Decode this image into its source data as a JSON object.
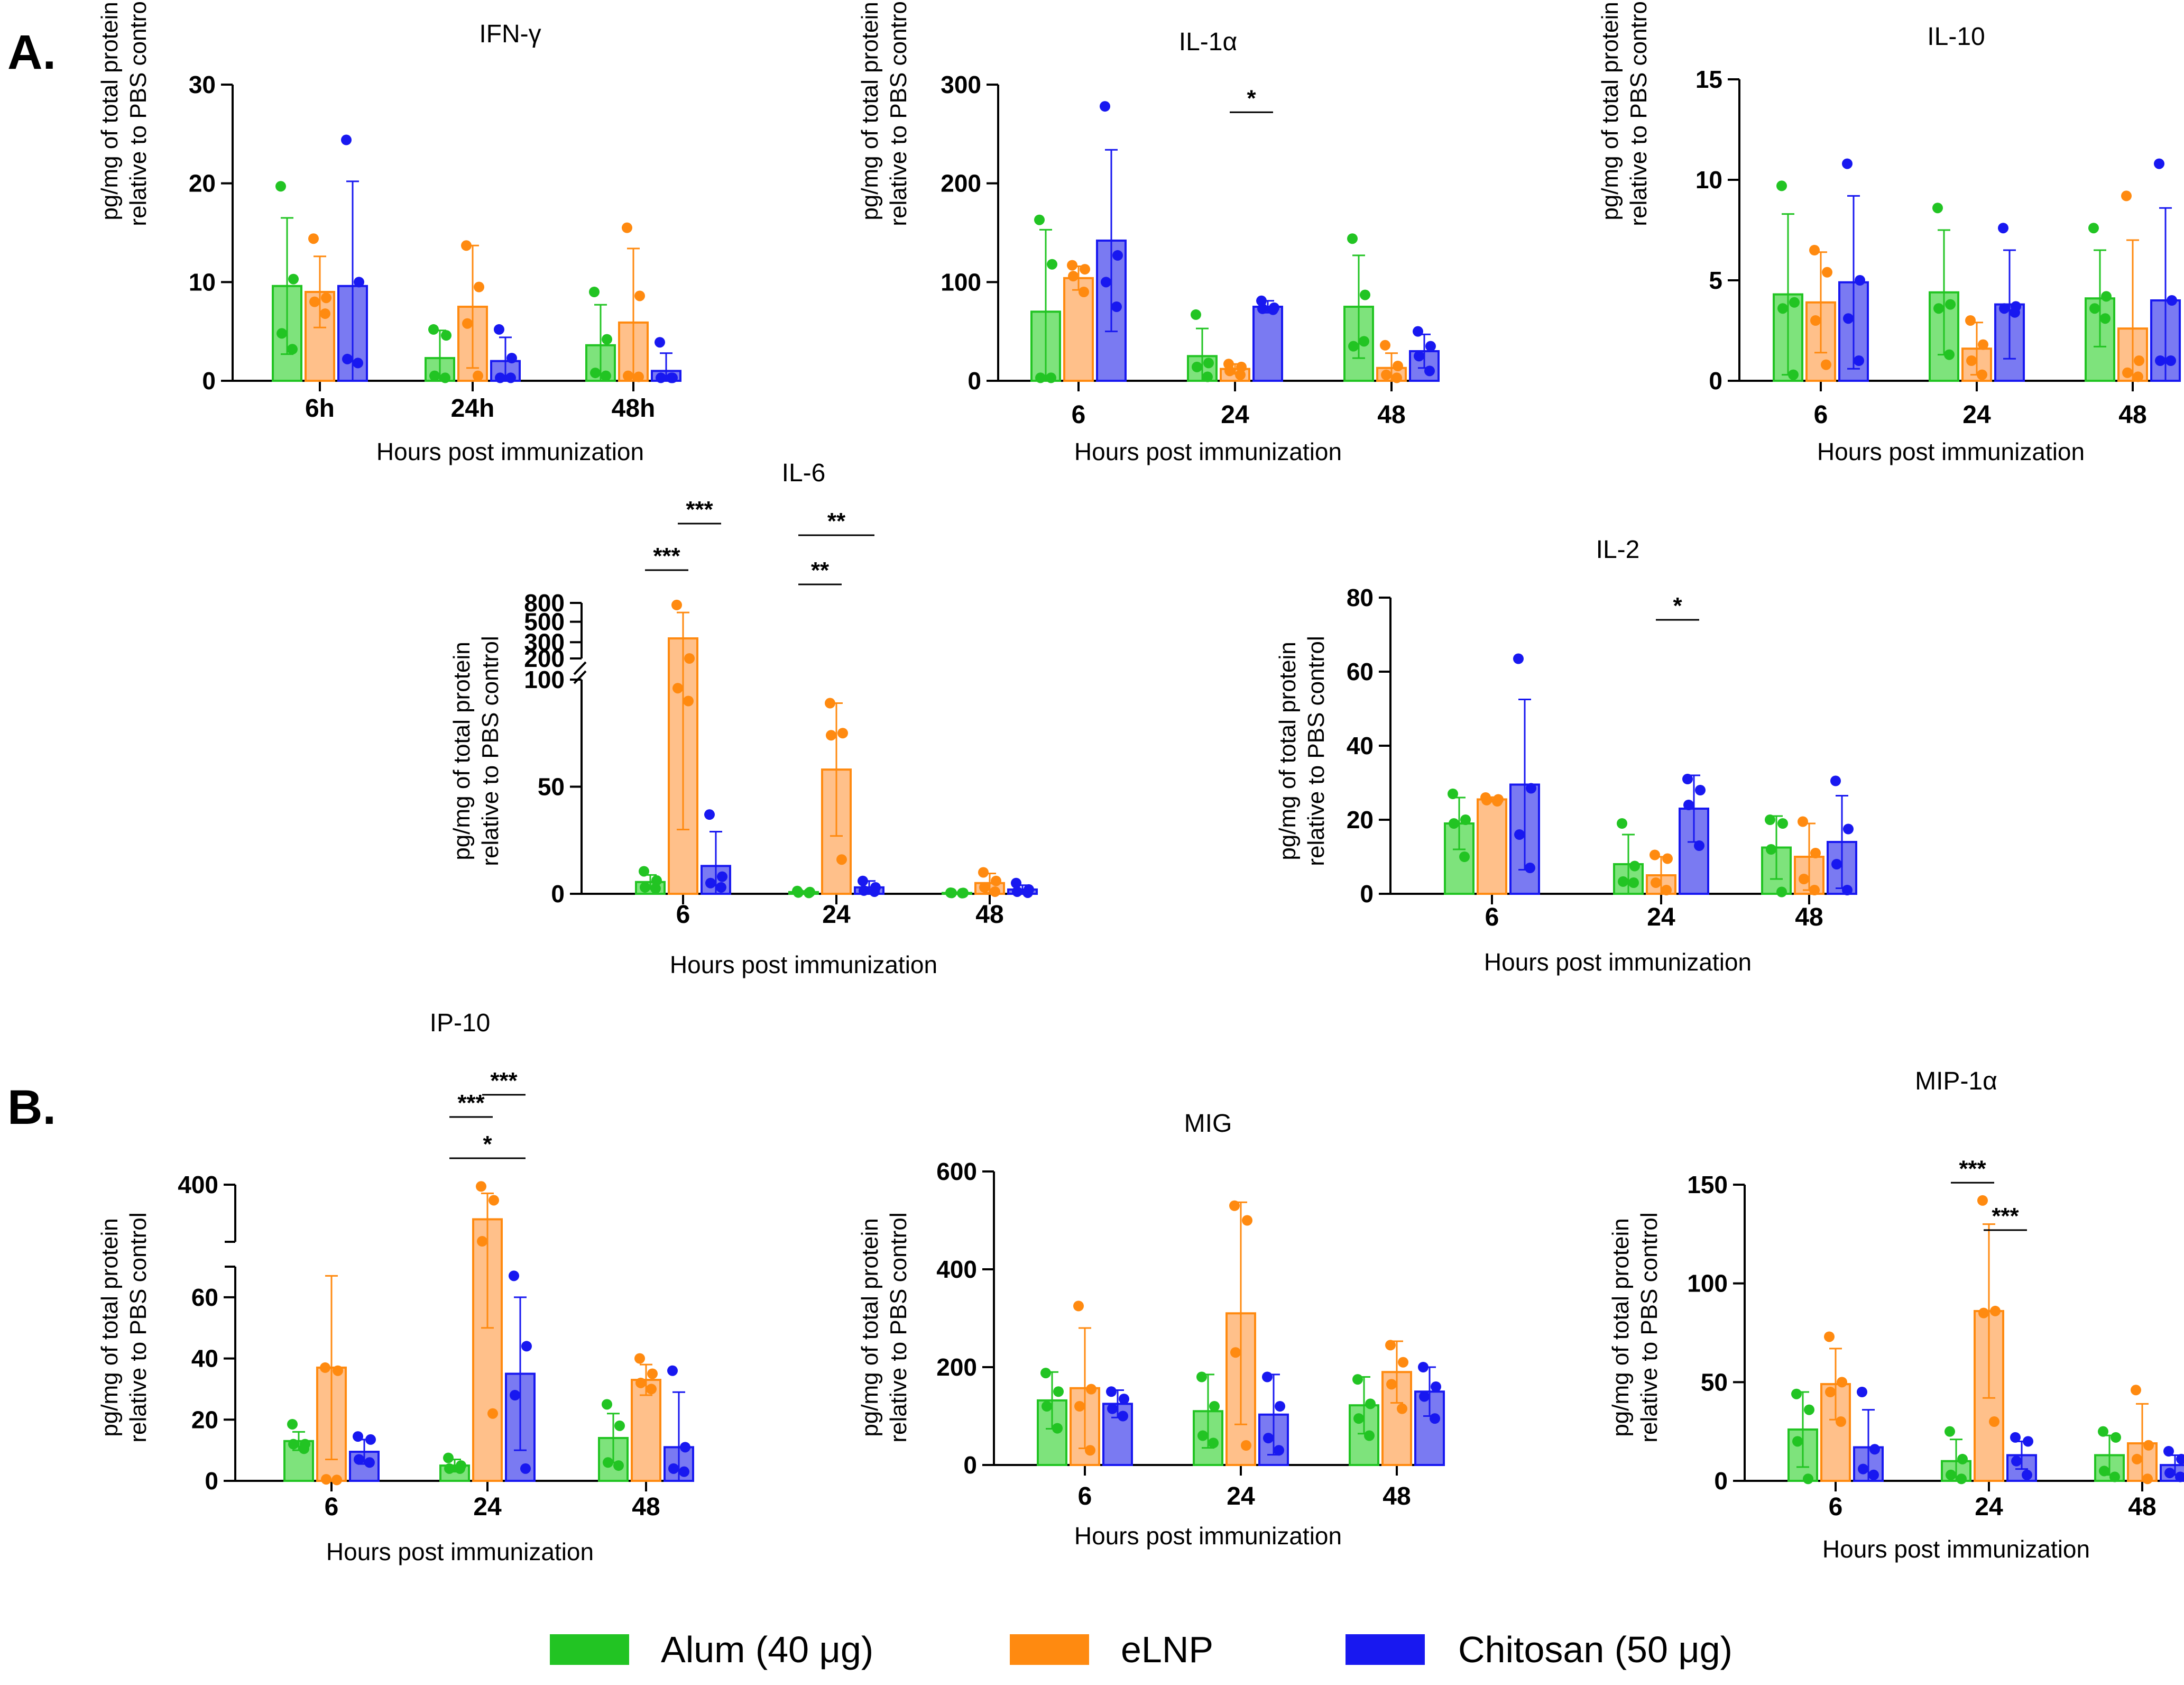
{
  "colors": {
    "Alum": "#22c423",
    "eLNP": "#ff8a10",
    "Chitosan": "#1818f0"
  },
  "panel_labels": [
    "A.",
    "B."
  ],
  "legend": [
    "Alum (40 μg)",
    "eLNP",
    "Chitosan (50 μg)"
  ],
  "chart_data": [
    {
      "id": "ifng",
      "type": "bar",
      "title": "IFN-γ",
      "xlabel": "Hours post immunization",
      "ylabel": [
        "pg/mg of total protein",
        "relative to PBS control"
      ],
      "categories": [
        "6h",
        "24h",
        "48h"
      ],
      "ylim": [
        0,
        30
      ],
      "yticks": [
        "0",
        "10",
        "20",
        "30"
      ],
      "ytick_values": [
        0,
        10,
        20,
        30
      ],
      "series": [
        {
          "name": "Alum (40 μg)",
          "values": [
            9.6,
            2.3,
            3.6
          ],
          "sd": [
            6.9,
            2.8,
            4.1
          ],
          "points": [
            [
              19.7,
              10.3,
              4.8,
              3.2
            ],
            [
              5.2,
              4.6,
              0.5,
              0.3
            ],
            [
              9.0,
              4.2,
              0.8,
              0.5
            ]
          ]
        },
        {
          "name": "eLNP",
          "values": [
            9.0,
            7.5,
            5.9
          ],
          "sd": [
            3.6,
            6.2,
            7.5
          ],
          "points": [
            [
              14.4,
              8.4,
              8.0,
              6.8
            ],
            [
              13.7,
              9.5,
              5.8,
              0.5
            ],
            [
              15.5,
              8.6,
              0.5,
              0.4
            ]
          ]
        },
        {
          "name": "Chitosan (50 μg)",
          "values": [
            9.6,
            2.0,
            1.0
          ],
          "sd": [
            10.6,
            2.4,
            1.8
          ],
          "points": [
            [
              24.4,
              10.0,
              2.2,
              1.8
            ],
            [
              5.2,
              2.3,
              0.3,
              0.3
            ],
            [
              3.9,
              0.3,
              0.3,
              0.3
            ]
          ]
        }
      ],
      "sig": []
    },
    {
      "id": "il1a",
      "type": "bar",
      "title": "IL-1α",
      "xlabel": "Hours post immunization",
      "ylabel": [
        "pg/mg of total protein",
        "relative to PBS control"
      ],
      "categories": [
        "6",
        "24",
        "48"
      ],
      "ylim": [
        0,
        300
      ],
      "yticks": [
        "0",
        "100",
        "200",
        "300"
      ],
      "ytick_values": [
        0,
        100,
        200,
        300
      ],
      "series": [
        {
          "name": "Alum (40 μg)",
          "values": [
            70,
            25,
            75
          ],
          "sd": [
            83,
            28,
            52
          ],
          "points": [
            [
              163,
              118,
              3,
              3
            ],
            [
              67,
              18,
              14,
              4
            ],
            [
              144,
              87,
              35,
              40
            ]
          ]
        },
        {
          "name": "eLNP",
          "values": [
            104,
            12,
            13
          ],
          "sd": [
            12,
            5,
            15
          ],
          "points": [
            [
              117,
              113,
              106,
              90
            ],
            [
              17,
              14,
              10,
              6
            ],
            [
              36,
              15,
              6,
              3
            ]
          ]
        },
        {
          "name": "Chitosan (50 μg)",
          "values": [
            142,
            75,
            30
          ],
          "sd": [
            92,
            6,
            17
          ],
          "points": [
            [
              278,
              127,
              100,
              75
            ],
            [
              81,
              74,
              73,
              72
            ],
            [
              50,
              35,
              25,
              10
            ]
          ]
        }
      ],
      "sig": [
        {
          "g": 1,
          "from": 1,
          "to": 2,
          "label": "*",
          "y": 272
        }
      ]
    },
    {
      "id": "il10",
      "type": "bar",
      "title": "IL-10",
      "xlabel": "Hours post immunization",
      "ylabel": [
        "pg/mg of total protein",
        "relative to PBS control"
      ],
      "categories": [
        "6",
        "24",
        "48"
      ],
      "ylim": [
        0,
        15
      ],
      "yticks": [
        "0",
        "5",
        "10",
        "15"
      ],
      "ytick_values": [
        0,
        5,
        10,
        15
      ],
      "series": [
        {
          "name": "Alum (40 μg)",
          "values": [
            4.3,
            4.4,
            4.1
          ],
          "sd": [
            4.0,
            3.1,
            2.4
          ],
          "points": [
            [
              9.7,
              3.9,
              3.6,
              0.3
            ],
            [
              8.6,
              3.8,
              3.6,
              1.3
            ],
            [
              7.6,
              4.2,
              3.6,
              3.1
            ]
          ]
        },
        {
          "name": "eLNP",
          "values": [
            3.9,
            1.6,
            2.6
          ],
          "sd": [
            2.5,
            1.3,
            4.4
          ],
          "points": [
            [
              6.5,
              5.4,
              3.0,
              0.8
            ],
            [
              3.0,
              1.8,
              1.0,
              0.3
            ],
            [
              9.2,
              1.0,
              0.4,
              0.2
            ]
          ]
        },
        {
          "name": "Chitosan (50 μg)",
          "values": [
            4.9,
            3.8,
            4.0
          ],
          "sd": [
            4.3,
            2.7,
            4.6
          ],
          "points": [
            [
              10.8,
              5.0,
              3.1,
              1.0
            ],
            [
              7.6,
              3.7,
              3.6,
              3.4
            ],
            [
              10.8,
              4.0,
              1.0,
              1.0
            ]
          ]
        }
      ],
      "sig": []
    },
    {
      "id": "il6",
      "type": "bar",
      "broken": true,
      "title": "IL-6",
      "xlabel": "Hours post immunization",
      "ylabel": [
        "pg/mg of total protein",
        "relative to PBS control"
      ],
      "categories": [
        "6",
        "24",
        "48"
      ],
      "yticks": [
        "0",
        "50",
        "100",
        "200",
        "300",
        "500",
        "800"
      ],
      "ytick_values": [
        0,
        50,
        100,
        200,
        300,
        500,
        800
      ],
      "series": [
        {
          "name": "Alum (40 μg)",
          "values": [
            5.5,
            0.8,
            0.4
          ],
          "sd": [
            3.3,
            0.5,
            0.3
          ],
          "points": [
            [
              10.5,
              6.2,
              3.0,
              2.5
            ],
            [
              1.3,
              0.8,
              0.6,
              0.4
            ],
            [
              0.5,
              0.4,
              0.4,
              0.3
            ]
          ]
        },
        {
          "name": "eLNP",
          "values": [
            330,
            58,
            5
          ],
          "sd": [
            300,
            31,
            4.5
          ],
          "points": [
            [
              760,
              200,
              96,
              90
            ],
            [
              89,
              75,
              74,
              16
            ],
            [
              10,
              6,
              3,
              1
            ]
          ]
        },
        {
          "name": "Chitosan (50 μg)",
          "values": [
            13,
            3,
            2
          ],
          "sd": [
            16,
            3,
            2
          ],
          "points": [
            [
              37,
              8,
              5,
              3
            ],
            [
              6,
              3,
              1.5,
              1
            ],
            [
              5,
              2,
              1,
              0.5
            ]
          ]
        }
      ],
      "sig": [
        {
          "g": 0,
          "from": 0,
          "to": 1,
          "label": "***",
          "y": "b3"
        },
        {
          "g": 0,
          "from": 1,
          "to": 2,
          "label": "***",
          "y": "b5"
        },
        {
          "g": 1,
          "from": 0,
          "to": 1,
          "label": "**",
          "y": "b1"
        },
        {
          "g": 1,
          "from": 0,
          "to": 2,
          "label": "**",
          "y": "b4"
        }
      ]
    },
    {
      "id": "il2",
      "type": "bar",
      "title": "IL-2",
      "xlabel": "Hours post immunization",
      "ylabel": [
        "pg/mg of total protein",
        "relative to PBS control"
      ],
      "categories": [
        "6",
        "24",
        "48"
      ],
      "ylim": [
        0,
        80
      ],
      "yticks": [
        "0",
        "20",
        "40",
        "60",
        "80"
      ],
      "ytick_values": [
        0,
        20,
        40,
        60,
        80
      ],
      "series": [
        {
          "name": "Alum (40 μg)",
          "values": [
            19,
            8,
            12.5
          ],
          "sd": [
            7,
            8,
            8.5
          ],
          "points": [
            [
              27,
              20,
              19,
              10
            ],
            [
              19,
              7.5,
              3.3,
              3.0
            ],
            [
              20,
              19,
              12,
              0.5
            ]
          ]
        },
        {
          "name": "eLNP",
          "values": [
            25.5,
            5,
            10
          ],
          "sd": [
            0.6,
            5,
            9
          ],
          "points": [
            [
              26,
              25.5,
              25.3,
              25
            ],
            [
              10.5,
              9.5,
              3,
              1
            ],
            [
              19.5,
              11,
              4,
              1
            ]
          ]
        },
        {
          "name": "Chitosan (50 μg)",
          "values": [
            29.5,
            23,
            14
          ],
          "sd": [
            23,
            9,
            12.5
          ],
          "points": [
            [
              63.5,
              28.5,
              16,
              7
            ],
            [
              31,
              28,
              24,
              13
            ],
            [
              30.5,
              17.5,
              8,
              1
            ]
          ]
        }
      ],
      "sig": [
        {
          "g": 1,
          "from": 1,
          "to": 2,
          "label": "*",
          "y": 74
        }
      ]
    },
    {
      "id": "ip10",
      "type": "bar",
      "broken": true,
      "title": "IP-10",
      "xlabel": "Hours post immunization",
      "ylabel": [
        "pg/mg of total protein",
        "relative to PBS control"
      ],
      "categories": [
        "6",
        "24",
        "48"
      ],
      "yticks": [
        "0",
        "20",
        "40",
        "60",
        "400"
      ],
      "ytick_values": [
        0,
        20,
        40,
        60,
        400
      ],
      "series": [
        {
          "name": "Alum (40 μg)",
          "values": [
            13,
            5,
            14
          ],
          "sd": [
            3,
            2,
            8
          ],
          "points": [
            [
              18.5,
              12,
              12,
              10.5
            ],
            [
              7.5,
              5,
              4,
              4
            ],
            [
              25,
              18,
              6,
              5
            ]
          ]
        },
        {
          "name": "eLNP",
          "values": [
            37,
            200,
            33
          ],
          "sd": [
            30,
            150,
            5
          ],
          "points": [
            [
              37,
              36,
              0.5,
              0.3
            ],
            [
              390,
              310,
              73,
              22
            ],
            [
              40,
              35,
              32,
              30
            ]
          ]
        },
        {
          "name": "Chitosan (50 μg)",
          "values": [
            9.5,
            35,
            11
          ],
          "sd": [
            4,
            25,
            18
          ],
          "points": [
            [
              14.5,
              13.5,
              7,
              6
            ],
            [
              67,
              44,
              28,
              4
            ],
            [
              36,
              11,
              4,
              3
            ]
          ]
        }
      ],
      "sig": [
        {
          "g": 1,
          "from": 0,
          "to": 1,
          "label": "***",
          "y": "c2"
        },
        {
          "g": 1,
          "from": 1,
          "to": 2,
          "label": "***",
          "y": "c3"
        },
        {
          "g": 1,
          "from": 0,
          "to": 2,
          "label": "*",
          "y": "c1"
        }
      ]
    },
    {
      "id": "mig",
      "type": "bar",
      "title": "MIG",
      "xlabel": "Hours post immunization",
      "ylabel": [
        "pg/mg of total protein",
        "relative to PBS control"
      ],
      "categories": [
        "6",
        "24",
        "48"
      ],
      "ylim": [
        0,
        600
      ],
      "yticks": [
        "0",
        "200",
        "400",
        "600"
      ],
      "ytick_values": [
        0,
        200,
        400,
        600
      ],
      "series": [
        {
          "name": "Alum (40 μg)",
          "values": [
            132,
            110,
            122
          ],
          "sd": [
            58,
            75,
            58
          ],
          "points": [
            [
              188,
              150,
              120,
              75
            ],
            [
              180,
              120,
              60,
              45
            ],
            [
              175,
              125,
              95,
              60
            ]
          ]
        },
        {
          "name": "eLNP",
          "values": [
            157,
            310,
            190
          ],
          "sd": [
            123,
            227,
            63
          ],
          "points": [
            [
              325,
              155,
              120,
              30
            ],
            [
              530,
              500,
              230,
              40
            ],
            [
              245,
              210,
              165,
              115
            ]
          ]
        },
        {
          "name": "Chitosan (50 μg)",
          "values": [
            125,
            103,
            150
          ],
          "sd": [
            28,
            82,
            50
          ],
          "points": [
            [
              150,
              135,
              115,
              100
            ],
            [
              180,
              120,
              55,
              30
            ],
            [
              200,
              160,
              140,
              95
            ]
          ]
        }
      ],
      "sig": []
    },
    {
      "id": "mip1a",
      "type": "bar",
      "title": "MIP-1α",
      "xlabel": "Hours post immunization",
      "ylabel": [
        "pg/mg of total protein",
        "relative to PBS control"
      ],
      "categories": [
        "6",
        "24",
        "48"
      ],
      "ylim": [
        0,
        150
      ],
      "yticks": [
        "0",
        "50",
        "100",
        "150"
      ],
      "ytick_values": [
        0,
        50,
        100,
        150
      ],
      "series": [
        {
          "name": "Alum (40 μg)",
          "values": [
            26,
            10,
            13
          ],
          "sd": [
            19,
            11,
            10
          ],
          "points": [
            [
              44,
              36,
              20,
              1
            ],
            [
              25,
              11,
              3,
              1
            ],
            [
              25,
              22,
              5,
              2
            ]
          ]
        },
        {
          "name": "eLNP",
          "values": [
            49,
            86,
            19
          ],
          "sd": [
            18,
            44,
            20
          ],
          "points": [
            [
              73,
              50,
              45,
              30
            ],
            [
              142,
              86,
              85,
              30
            ],
            [
              46,
              18,
              11,
              1
            ]
          ]
        },
        {
          "name": "Chitosan (50 μg)",
          "values": [
            17,
            13,
            8
          ],
          "sd": [
            19,
            7,
            5
          ],
          "points": [
            [
              45,
              16,
              6,
              3
            ],
            [
              22,
              20,
              10,
              3
            ],
            [
              15,
              11,
              4,
              2
            ]
          ]
        }
      ],
      "sig": [
        {
          "g": 1,
          "from": 0,
          "to": 1,
          "label": "***",
          "y": 151
        },
        {
          "g": 1,
          "from": 1,
          "to": 2,
          "label": "***",
          "y": 127
        }
      ]
    }
  ]
}
